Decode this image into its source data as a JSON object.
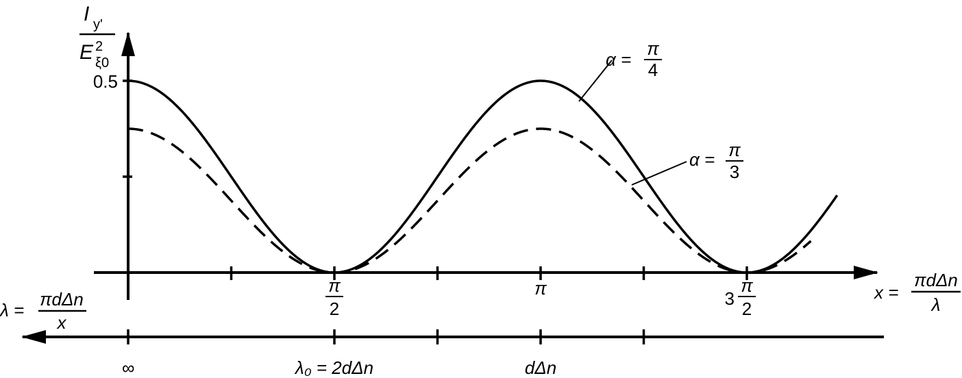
{
  "chart_data": {
    "type": "line",
    "ylabel": {
      "numerator_main": "I",
      "numerator_sub": "y'",
      "denominator_main": "E",
      "denominator_sup": "2",
      "denominator_sub": "ξ0"
    },
    "xlabel": {
      "lhs": "x =",
      "numerator": "πdΔn",
      "denominator": "λ"
    },
    "lambda_axis_label": {
      "lhs": "λ =",
      "numerator": "πdΔn",
      "denominator": "x"
    },
    "y_tick_label": "0.5",
    "x_tick_labels": [
      {
        "x": 1.5708,
        "type": "frac",
        "prefix": "",
        "numerator": "π",
        "denominator": "2"
      },
      {
        "x": 3.1416,
        "type": "plain",
        "text": "π"
      },
      {
        "x": 4.7124,
        "type": "frac",
        "prefix": "3",
        "numerator": "π",
        "denominator": "2"
      }
    ],
    "lambda_tick_labels": [
      {
        "x": 0,
        "text": "∞"
      },
      {
        "x": 1.5708,
        "text": "λ₀ = 2dΔn"
      },
      {
        "x": 3.1416,
        "text": "dΔn"
      }
    ],
    "x_minor_ticks": [
      0.7854,
      2.3562,
      3.927
    ],
    "xlim": [
      0,
      5.2
    ],
    "ylim": [
      0,
      0.5
    ],
    "series": [
      {
        "name": "α = π/4",
        "label_lhs": "α =",
        "label_numerator": "π",
        "label_denominator": "4",
        "style": "solid",
        "amplitude": 0.5,
        "x_end": 5.4
      },
      {
        "name": "α = π/3",
        "label_lhs": "α =",
        "label_numerator": "π",
        "label_denominator": "3",
        "style": "dashed",
        "amplitude": 0.375,
        "x_end": 5.2
      }
    ],
    "y_minor_tick": 0.25,
    "grid": false,
    "legend": "none"
  }
}
